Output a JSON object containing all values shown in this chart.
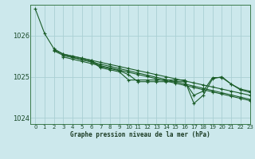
{
  "title": "Graphe pression niveau de la mer (hPa)",
  "background_color": "#cce8ec",
  "grid_color": "#aacfd4",
  "line_color": "#1a5c28",
  "xlim": [
    -0.5,
    23
  ],
  "ylim": [
    1023.85,
    1026.75
  ],
  "yticks": [
    1024,
    1025,
    1026
  ],
  "xtick_labels": [
    "0",
    "1",
    "2",
    "3",
    "4",
    "5",
    "6",
    "7",
    "8",
    "9",
    "10",
    "11",
    "12",
    "13",
    "14",
    "15",
    "16",
    "17",
    "18",
    "19",
    "20",
    "21",
    "22",
    "23"
  ],
  "series": [
    [
      1026.65,
      1026.05,
      null,
      null,
      null,
      null,
      null,
      null,
      null,
      null,
      null,
      null,
      null,
      null,
      null,
      null,
      null,
      null,
      null,
      null,
      null,
      null,
      null,
      null
    ],
    [
      null,
      null,
      1025.65,
      1025.55,
      1025.5,
      1025.45,
      1025.4,
      1025.25,
      1025.2,
      1025.15,
      1025.05,
      1024.88,
      1024.88,
      1024.88,
      1024.88,
      1024.88,
      1024.88,
      1024.55,
      1024.65,
      1024.98,
      1024.98,
      1024.82,
      1024.7,
      1024.65
    ],
    [
      null,
      null,
      null,
      1025.5,
      1025.45,
      1025.4,
      1025.35,
      1025.3,
      1025.25,
      1025.2,
      1025.15,
      1025.1,
      1025.05,
      1025.0,
      1024.95,
      1024.9,
      1024.85,
      1024.8,
      1024.75,
      1024.7,
      1024.65,
      1024.6,
      1024.55,
      1024.5
    ],
    [
      null,
      null,
      null,
      1025.48,
      1025.43,
      1025.38,
      1025.33,
      1025.28,
      1025.23,
      1025.18,
      1025.13,
      1025.08,
      1025.03,
      1024.98,
      1024.93,
      1024.88,
      1024.83,
      1024.78,
      1024.73,
      1024.68,
      1024.63,
      1024.58,
      1024.53,
      1024.48
    ],
    [
      1026.65,
      1025.55,
      1025.5,
      1025.45,
      1025.4,
      1025.35,
      1025.3,
      1025.25,
      1025.2,
      1025.15,
      1025.1,
      1025.05,
      1025.0,
      1024.95,
      1024.9,
      1024.85,
      1024.8,
      1024.75,
      1024.7,
      1024.65,
      1024.6,
      1024.55,
      1024.5,
      1024.45
    ]
  ]
}
